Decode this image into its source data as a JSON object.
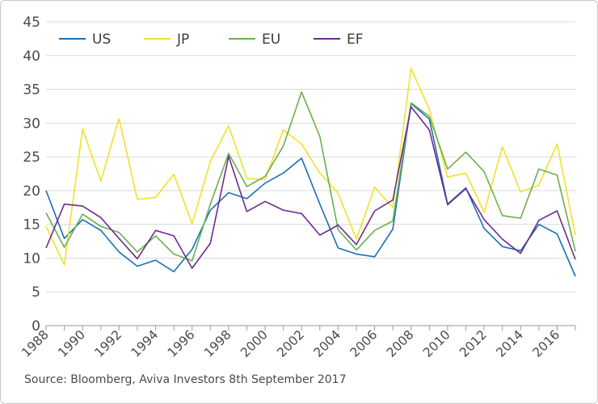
{
  "source_text": "Source: Bloomberg, Aviva Investors 8th September 2017",
  "chart_data": {
    "type": "line",
    "x": [
      1988,
      1989,
      1990,
      1991,
      1992,
      1993,
      1994,
      1995,
      1996,
      1997,
      1998,
      1999,
      2000,
      2001,
      2002,
      2003,
      2004,
      2005,
      2006,
      2007,
      2008,
      2009,
      2010,
      2011,
      2012,
      2013,
      2014,
      2015,
      2016,
      2017
    ],
    "x_tick_labels": [
      "1988",
      "1990",
      "1992",
      "1994",
      "1996",
      "1998",
      "2000",
      "2002",
      "2004",
      "2006",
      "2008",
      "2010",
      "2012",
      "2014",
      "2016"
    ],
    "ylim": [
      0,
      45
    ],
    "y_ticks": [
      0,
      5,
      10,
      15,
      20,
      25,
      30,
      35,
      40,
      45
    ],
    "grid": "horizontal",
    "legend": "top-left",
    "series": [
      {
        "name": "US",
        "color": "#1a6fb5",
        "values": [
          20.0,
          12.9,
          15.7,
          14.1,
          10.9,
          8.8,
          9.7,
          8.0,
          11.3,
          17.1,
          19.7,
          18.8,
          21.1,
          22.6,
          24.8,
          18.0,
          11.5,
          10.6,
          10.2,
          14.3,
          32.9,
          30.6,
          18.0,
          20.4,
          14.4,
          11.7,
          11.1,
          15.0,
          13.6,
          7.3
        ]
      },
      {
        "name": "JP",
        "color": "#f2e12a",
        "values": [
          14.7,
          9.0,
          29.1,
          21.4,
          30.7,
          18.7,
          19.0,
          22.4,
          15.1,
          24.3,
          29.6,
          21.8,
          21.6,
          29.0,
          26.9,
          22.6,
          19.6,
          12.8,
          20.5,
          17.5,
          38.1,
          32.0,
          22.0,
          22.6,
          16.8,
          26.5,
          19.8,
          20.8,
          26.9,
          13.4
        ]
      },
      {
        "name": "EU",
        "color": "#6ab04c",
        "values": [
          16.7,
          11.6,
          16.5,
          14.7,
          13.8,
          10.9,
          13.3,
          10.6,
          9.6,
          18.0,
          25.5,
          20.6,
          22.1,
          26.6,
          34.6,
          28.0,
          14.2,
          11.2,
          14.1,
          15.5,
          33.0,
          31.0,
          23.2,
          25.7,
          22.8,
          16.3,
          15.9,
          23.2,
          22.3,
          11.0
        ]
      },
      {
        "name": "EF",
        "color": "#6f2b8c",
        "values": [
          11.5,
          18.0,
          17.7,
          16.0,
          12.9,
          9.9,
          14.1,
          13.3,
          8.5,
          12.2,
          25.1,
          16.9,
          18.4,
          17.1,
          16.6,
          13.4,
          14.9,
          12.0,
          17.0,
          18.6,
          32.4,
          29.0,
          17.9,
          20.3,
          15.7,
          12.8,
          10.7,
          15.6,
          17.0,
          9.8
        ]
      }
    ]
  }
}
